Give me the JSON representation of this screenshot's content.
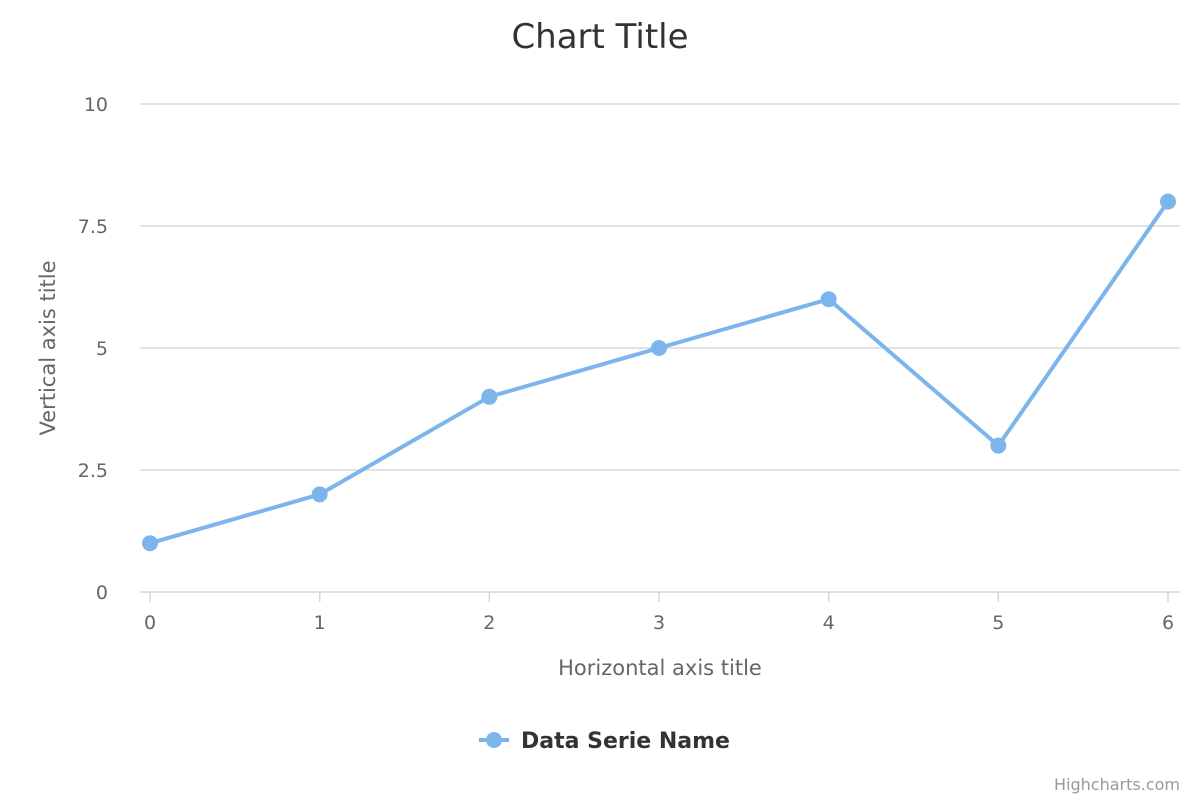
{
  "chart_data": {
    "type": "line",
    "title": "Chart Title",
    "xlabel": "Horizontal axis title",
    "ylabel": "Vertical axis title",
    "x": [
      0,
      1,
      2,
      3,
      4,
      5,
      6
    ],
    "xticks": [
      "0",
      "1",
      "2",
      "3",
      "4",
      "5",
      "6"
    ],
    "yticks": [
      "0",
      "2.5",
      "5",
      "7.5",
      "10"
    ],
    "ytick_values": [
      0,
      2.5,
      5,
      7.5,
      10
    ],
    "xlim": [
      0,
      6
    ],
    "ylim": [
      0,
      10
    ],
    "grid": true,
    "legend_position": "bottom-center",
    "series": [
      {
        "name": "Data Serie Name",
        "color": "#7cb5ec",
        "values": [
          1,
          2,
          4,
          5,
          6,
          3,
          8
        ]
      }
    ]
  },
  "credits": "Highcharts.com"
}
